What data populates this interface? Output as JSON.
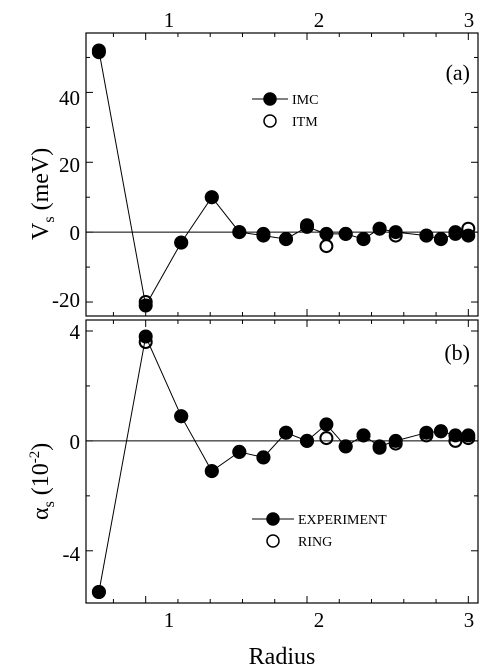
{
  "chart_data": [
    {
      "panel": "(a)",
      "type": "line",
      "xlabel": "Radius",
      "ylabel": "V_s (meV)",
      "ylabel_main": "V",
      "ylabel_sub": "s",
      "ylabel_units": "(meV)",
      "xlim": [
        0.63,
        3.06
      ],
      "ylim": [
        -24,
        57
      ],
      "xticks": [
        1,
        2,
        3
      ],
      "yticks": [
        -20,
        0,
        20,
        40
      ],
      "ytick_labels": [
        "-20",
        "0",
        "20",
        "40"
      ],
      "top_tick_labels": [
        "1",
        "2",
        "3"
      ],
      "legend_position": "upper-middle",
      "series": [
        {
          "name": "IMC",
          "marker": "filled-circle",
          "line": true,
          "x": [
            0.71,
            1.0,
            1.22,
            1.41,
            1.58,
            1.73,
            1.87,
            2.0,
            2.12,
            2.24,
            2.35,
            2.45,
            2.55,
            2.74,
            2.83,
            2.92,
            3.0
          ],
          "y": [
            52,
            -21,
            -3,
            10,
            0,
            -1,
            -2,
            1.5,
            -0.5,
            -0.5,
            -2,
            1,
            0,
            -1,
            -2,
            -0.5,
            -1
          ]
        },
        {
          "name": "ITM",
          "marker": "open-circle",
          "line": false,
          "x": [
            0.71,
            1.0,
            1.22,
            1.41,
            1.58,
            1.73,
            1.87,
            2.0,
            2.12,
            2.24,
            2.35,
            2.45,
            2.55,
            2.74,
            2.83,
            2.92,
            3.0
          ],
          "y": [
            51.5,
            -20,
            -3,
            10,
            0,
            -0.5,
            -2,
            2,
            -4,
            -0.5,
            -2,
            1,
            -1,
            -1,
            -2,
            0,
            1
          ]
        }
      ]
    },
    {
      "panel": "(b)",
      "type": "line",
      "xlabel": "Radius",
      "ylabel": "α_s (10^-2)",
      "ylabel_main": "α",
      "ylabel_sub": "s",
      "ylabel_units_pre": "(10",
      "ylabel_units_sup": "-2",
      "ylabel_units_post": ")",
      "xlim": [
        0.63,
        3.06
      ],
      "ylim": [
        -5.9,
        4.4
      ],
      "xticks": [
        1,
        2,
        3
      ],
      "xtick_labels": [
        "1",
        "2",
        "3"
      ],
      "yticks": [
        -4,
        0,
        4
      ],
      "ytick_labels": [
        "-4",
        "0",
        "4"
      ],
      "legend_position": "lower-right",
      "series": [
        {
          "name": "EXPERIMENT",
          "marker": "filled-circle",
          "line": true,
          "x": [
            0.71,
            1.0,
            1.22,
            1.41,
            1.58,
            1.73,
            1.87,
            2.0,
            2.12,
            2.24,
            2.35,
            2.45,
            2.55,
            2.74,
            2.83,
            2.92,
            3.0
          ],
          "y": [
            -5.5,
            3.8,
            0.9,
            -1.1,
            -0.4,
            -0.6,
            0.3,
            0.0,
            0.6,
            -0.2,
            0.2,
            -0.2,
            0.0,
            0.3,
            0.35,
            0.2,
            0.2
          ]
        },
        {
          "name": "RING",
          "marker": "open-circle",
          "line": false,
          "x": [
            0.71,
            1.0,
            1.22,
            1.41,
            1.58,
            1.73,
            1.87,
            2.0,
            2.12,
            2.24,
            2.35,
            2.45,
            2.55,
            2.74,
            2.83,
            2.92,
            3.0
          ],
          "y": [
            -5.5,
            3.6,
            0.9,
            -1.1,
            -0.4,
            -0.6,
            0.3,
            0.0,
            0.1,
            -0.2,
            0.2,
            -0.25,
            -0.1,
            0.2,
            0.35,
            0.0,
            0.1
          ]
        }
      ]
    }
  ]
}
